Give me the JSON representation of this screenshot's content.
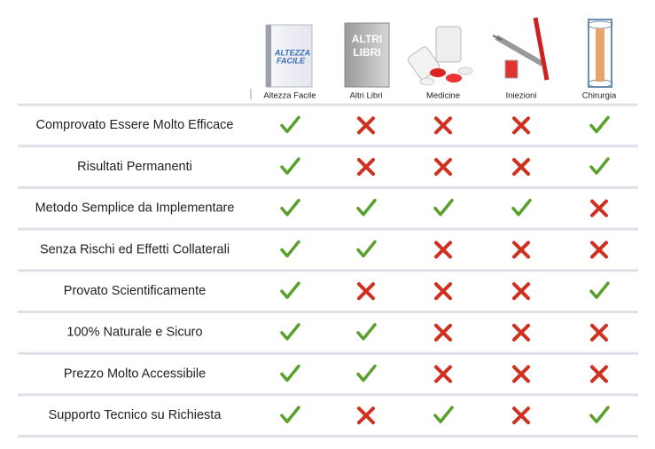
{
  "header": {
    "columns": [
      "Altezza Facile",
      "Altri Libri",
      "Medicine",
      "Iniezioni",
      "Chirurgia"
    ],
    "book_cover_text": [
      "ALTEZZA",
      "FACILE"
    ],
    "other_books_text": [
      "ALTRI",
      "LIBRI"
    ]
  },
  "table": {
    "rows": [
      {
        "feature": "Comprovato Essere Molto Efficace",
        "cells": [
          true,
          false,
          false,
          false,
          true
        ]
      },
      {
        "feature": "Risultati Permanenti",
        "cells": [
          true,
          false,
          false,
          false,
          true
        ]
      },
      {
        "feature": "Metodo Semplice da Implementare",
        "cells": [
          true,
          true,
          true,
          true,
          false
        ]
      },
      {
        "feature": "Senza Rischi ed Effetti Collaterali",
        "cells": [
          true,
          true,
          false,
          false,
          false
        ]
      },
      {
        "feature": "Provato Scientificamente",
        "cells": [
          true,
          false,
          false,
          false,
          true
        ]
      },
      {
        "feature": "100% Naturale e Sicuro",
        "cells": [
          true,
          true,
          false,
          false,
          false
        ]
      },
      {
        "feature": "Prezzo Molto Accessibile",
        "cells": [
          true,
          true,
          false,
          false,
          false
        ]
      },
      {
        "feature": "Supporto Tecnico su Richiesta",
        "cells": [
          true,
          false,
          true,
          false,
          true
        ]
      }
    ]
  }
}
